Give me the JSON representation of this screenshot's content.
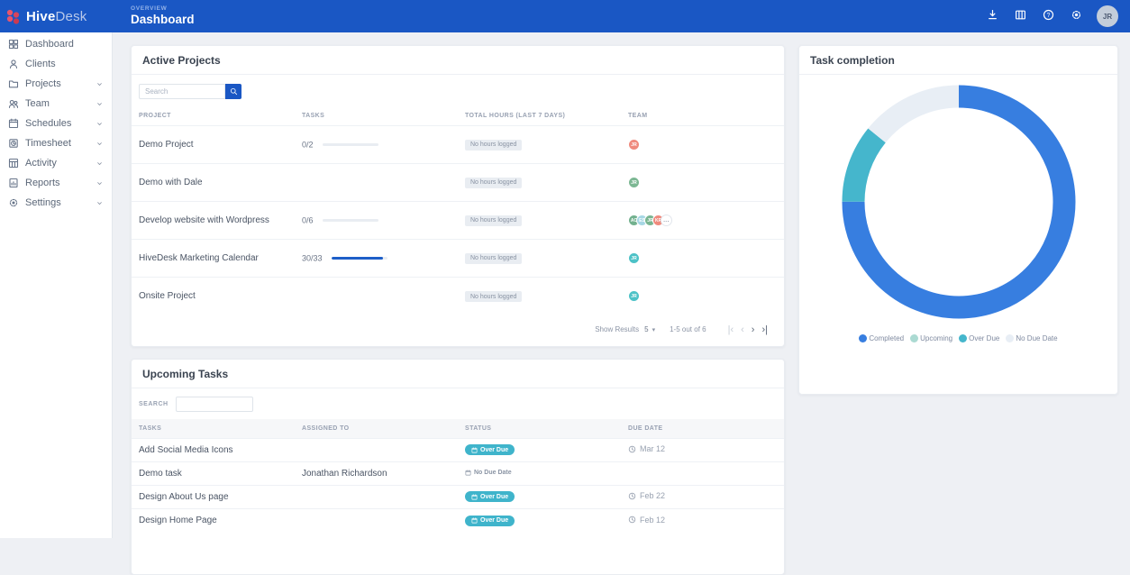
{
  "header": {
    "eyebrow": "OVERVIEW",
    "title": "Dashboard",
    "brand": {
      "bold": "Hive",
      "light": "Desk"
    },
    "actions": [
      {
        "icon": "download",
        "name": "download-icon"
      },
      {
        "icon": "columns",
        "name": "columns-icon"
      },
      {
        "icon": "help",
        "name": "help-icon"
      },
      {
        "icon": "gear",
        "name": "gear-icon"
      }
    ],
    "avatar_initials": "JR"
  },
  "sidebar": {
    "items": [
      {
        "label": "Dashboard",
        "icon": "dashboard",
        "chevron": false
      },
      {
        "label": "Clients",
        "icon": "clients",
        "chevron": false
      },
      {
        "label": "Projects",
        "icon": "projects",
        "chevron": true
      },
      {
        "label": "Team",
        "icon": "team",
        "chevron": true
      },
      {
        "label": "Schedules",
        "icon": "schedules",
        "chevron": true
      },
      {
        "label": "Timesheet",
        "icon": "timesheet",
        "chevron": true
      },
      {
        "label": "Activity",
        "icon": "activity",
        "chevron": true
      },
      {
        "label": "Reports",
        "icon": "reports",
        "chevron": true
      },
      {
        "label": "Settings",
        "icon": "settings",
        "chevron": true
      }
    ]
  },
  "active_projects": {
    "title": "Active Projects",
    "search_placeholder": "Search",
    "columns": [
      "PROJECT",
      "TASKS",
      "TOTAL HOURS (LAST 7 DAYS)",
      "TEAM"
    ],
    "rows": [
      {
        "project": "Demo Project",
        "tasks": "0/2",
        "progress_percent": 0,
        "hours_badge": "No hours logged",
        "team": [
          {
            "initials": "JR",
            "color": "#ef8a7d"
          }
        ]
      },
      {
        "project": "Demo with Dale",
        "tasks": "",
        "progress_percent": 0,
        "hours_badge": "No hours logged",
        "team": [
          {
            "initials": "JR",
            "color": "#7cb793"
          }
        ]
      },
      {
        "project": "Develop website with Wordpress",
        "tasks": "0/6",
        "progress_percent": 0,
        "hours_badge": "No hours logged",
        "team": [
          {
            "initials": "AC",
            "color": "#72b18e"
          },
          {
            "initials": "ES",
            "color": "#a6d7e4"
          },
          {
            "initials": "JR",
            "color": "#79b591"
          },
          {
            "initials": "KP",
            "color": "#ef8a7d"
          },
          {
            "more": true,
            "label": "..."
          }
        ]
      },
      {
        "project": "HiveDesk Marketing Calendar",
        "tasks": "30/33",
        "progress_percent": 91,
        "hours_badge": "No hours logged",
        "team": [
          {
            "initials": "JR",
            "color": "#4dc2c7"
          }
        ]
      },
      {
        "project": "Onsite Project",
        "tasks": "",
        "progress_percent": 0,
        "hours_badge": "No hours logged",
        "team": [
          {
            "initials": "JR",
            "color": "#4dc2c7"
          }
        ]
      }
    ],
    "pagination": {
      "show_results_label": "Show Results",
      "page_size": "5",
      "caret": "▾",
      "range_text": "1-5 out of 6",
      "nav": [
        {
          "id": "first",
          "glyph": "|‹",
          "enabled": false
        },
        {
          "id": "prev",
          "glyph": "‹",
          "enabled": false
        },
        {
          "id": "next",
          "glyph": "›",
          "enabled": true
        },
        {
          "id": "last",
          "glyph": "›|",
          "enabled": true
        }
      ]
    }
  },
  "upcoming_tasks": {
    "title": "Upcoming Tasks",
    "search_label": "SEARCH",
    "columns": [
      "TASKS",
      "ASSIGNED TO",
      "STATUS",
      "DUE DATE"
    ],
    "rows": [
      {
        "task": "Add Social Media Icons",
        "assigned_to": "",
        "status": "Over Due",
        "status_type": "overdue",
        "due_date": "Mar 12"
      },
      {
        "task": "Demo task",
        "assigned_to": "Jonathan Richardson",
        "status": "No Due Date",
        "status_type": "nodue",
        "due_date": ""
      },
      {
        "task": "Design About Us page",
        "assigned_to": "",
        "status": "Over Due",
        "status_type": "overdue",
        "due_date": "Feb 22"
      },
      {
        "task": "Design Home Page",
        "assigned_to": "",
        "status": "Over Due",
        "status_type": "overdue",
        "due_date": "Feb 12"
      }
    ]
  },
  "task_completion": {
    "title": "Task completion"
  },
  "chart_data": {
    "type": "pie",
    "variant": "donut",
    "title": "Task completion",
    "labels": [
      "Completed",
      "Upcoming",
      "Over Due",
      "No Due Date"
    ],
    "values_percent": [
      75,
      0,
      10.8,
      14.2
    ],
    "colors": [
      "#377ee0",
      "#abdad2",
      "#45b6cc",
      "#e8eef5"
    ],
    "legend_position": "bottom",
    "start_angle_deg": 0,
    "direction": "clockwise"
  },
  "colors": {
    "topbar_blue": "#1a57c4",
    "progress_blue": "#1d5fc8",
    "overdue_teal": "#3fb4cb",
    "badge_gray_bg": "#e9edf2",
    "content_bg": "#eef0f4"
  }
}
